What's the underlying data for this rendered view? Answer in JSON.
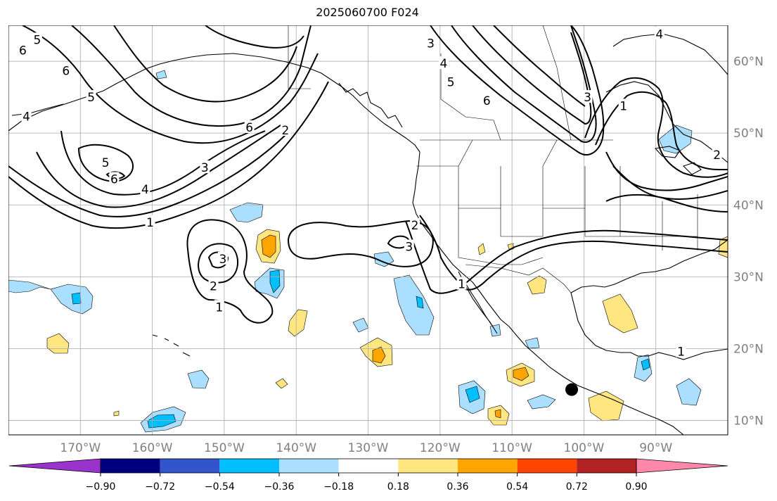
{
  "title": "2025060700 F024",
  "map": {
    "projection": "PlateCarree",
    "extent": {
      "lon_min": -180,
      "lon_max": -80,
      "lat_min": 8,
      "lat_max": 65
    },
    "lon_ticks": [
      {
        "value": -170,
        "label": "170°W"
      },
      {
        "value": -160,
        "label": "160°W"
      },
      {
        "value": -150,
        "label": "150°W"
      },
      {
        "value": -140,
        "label": "140°W"
      },
      {
        "value": -130,
        "label": "130°W"
      },
      {
        "value": -120,
        "label": "120°W"
      },
      {
        "value": -110,
        "label": "110°W"
      },
      {
        "value": -100,
        "label": "100°W"
      },
      {
        "value": -90,
        "label": "90°W"
      }
    ],
    "lat_ticks": [
      {
        "value": 10,
        "label": "10°N"
      },
      {
        "value": 20,
        "label": "20°N"
      },
      {
        "value": 30,
        "label": "30°N"
      },
      {
        "value": 40,
        "label": "40°N"
      },
      {
        "value": 50,
        "label": "50°N"
      },
      {
        "value": 60,
        "label": "60°N"
      }
    ],
    "gridlines": true,
    "marker": {
      "lon": -101.7,
      "lat": 14.3
    },
    "contour_labels": [
      {
        "text": "5",
        "lon": -176.0,
        "lat": 63.0
      },
      {
        "text": "6",
        "lon": -178.0,
        "lat": 61.5
      },
      {
        "text": "6",
        "lon": -172.0,
        "lat": 58.7
      },
      {
        "text": "5",
        "lon": -168.5,
        "lat": 55.0
      },
      {
        "text": "4",
        "lon": -177.5,
        "lat": 52.3
      },
      {
        "text": "6",
        "lon": -146.5,
        "lat": 50.8
      },
      {
        "text": "5",
        "lon": -166.5,
        "lat": 45.9
      },
      {
        "text": "6",
        "lon": -165.3,
        "lat": 43.6
      },
      {
        "text": "4",
        "lon": -161.0,
        "lat": 42.2
      },
      {
        "text": "3",
        "lon": -152.7,
        "lat": 45.2
      },
      {
        "text": "2",
        "lon": -141.5,
        "lat": 50.4
      },
      {
        "text": "1",
        "lon": -160.3,
        "lat": 37.6
      },
      {
        "text": "3",
        "lon": -150.2,
        "lat": 32.5
      },
      {
        "text": "2",
        "lon": -151.5,
        "lat": 28.7
      },
      {
        "text": "1",
        "lon": -150.7,
        "lat": 25.8
      },
      {
        "text": "2",
        "lon": -123.5,
        "lat": 37.2
      },
      {
        "text": "3",
        "lon": -124.3,
        "lat": 34.2
      },
      {
        "text": "1",
        "lon": -117.0,
        "lat": 29.0
      },
      {
        "text": "3",
        "lon": -121.3,
        "lat": 62.5
      },
      {
        "text": "4",
        "lon": -119.5,
        "lat": 59.7
      },
      {
        "text": "5",
        "lon": -118.5,
        "lat": 57.1
      },
      {
        "text": "6",
        "lon": -113.5,
        "lat": 54.5
      },
      {
        "text": "4",
        "lon": -89.5,
        "lat": 63.8
      },
      {
        "text": "3",
        "lon": -99.5,
        "lat": 55.0
      },
      {
        "text": "1",
        "lon": -94.5,
        "lat": 53.8
      },
      {
        "text": "2",
        "lon": -81.5,
        "lat": 47.0
      },
      {
        "text": "1",
        "lon": -86.5,
        "lat": 19.6
      }
    ]
  },
  "colorbar": {
    "colors": [
      "#9933cc",
      "#000080",
      "#3355cc",
      "#00bfff",
      "#aadfff",
      "#ffffff",
      "#ffe680",
      "#ffa500",
      "#ff4500",
      "#b22222",
      "#ff88aa"
    ],
    "tick_labels": [
      "−0.90",
      "−0.72",
      "−0.54",
      "−0.36",
      "−0.18",
      "0.18",
      "0.36",
      "0.54",
      "0.72",
      "0.90"
    ]
  }
}
